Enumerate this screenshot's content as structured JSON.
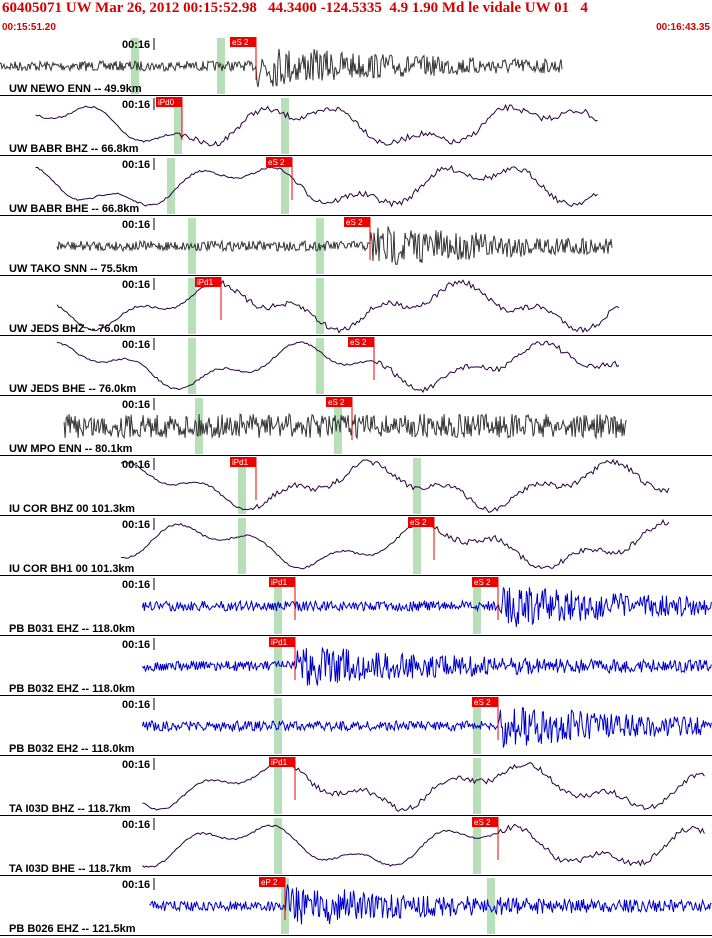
{
  "header": {
    "title": "60405071 UW Mar 26, 2012 00:15:52.98   44.3400 -124.5335  4.9 1.90 Md le vidale UW 01   4",
    "time_start": "00:15:51.20",
    "time_end": "00:16:43.35"
  },
  "colors": {
    "title": "#d40000",
    "pick": "#ee0000",
    "window": "#b8e0b8",
    "trace_dark": "#333333",
    "trace_blue": "#0000cc",
    "trace_purple": "#2a0040"
  },
  "traces": [
    {
      "label": "UW NEWO ENN -- 49.9km",
      "time_tick": "00:16",
      "color": "dark",
      "style": "noise",
      "span": [
        0.0,
        0.79
      ],
      "windows": [
        0.19,
        0.31
      ],
      "picks": [
        {
          "text": "eS 2",
          "at": 0.36
        }
      ]
    },
    {
      "label": "UW BABR BHZ -- 66.8km",
      "time_tick": "00:16",
      "color": "purple",
      "style": "wave",
      "span": [
        0.05,
        0.84
      ],
      "windows": [
        0.25,
        0.4
      ],
      "picks": [
        {
          "text": "iPd0",
          "at": 0.255
        }
      ]
    },
    {
      "label": "UW BABR BHE -- 66.8km",
      "time_tick": "00:16",
      "color": "purple",
      "style": "wave",
      "span": [
        0.05,
        0.84
      ],
      "windows": [
        0.24,
        0.4
      ],
      "picks": [
        {
          "text": "eS 2",
          "at": 0.41
        }
      ]
    },
    {
      "label": "UW TAKO SNN -- 75.5km",
      "time_tick": "00:16",
      "color": "dark",
      "style": "noise",
      "span": [
        0.08,
        0.86
      ],
      "windows": [
        0.27,
        0.45
      ],
      "picks": [
        {
          "text": "eS 2",
          "at": 0.52
        }
      ]
    },
    {
      "label": "UW JEDS BHZ -- 76.0km",
      "time_tick": "00:16",
      "color": "purple",
      "style": "wave",
      "span": [
        0.08,
        0.87
      ],
      "windows": [
        0.27,
        0.45
      ],
      "picks": [
        {
          "text": "iPd1",
          "at": 0.31
        }
      ]
    },
    {
      "label": "UW JEDS BHE -- 76.0km",
      "time_tick": "00:16",
      "color": "purple",
      "style": "wave",
      "span": [
        0.08,
        0.87
      ],
      "windows": [
        0.27,
        0.45
      ],
      "picks": [
        {
          "text": "eS 2",
          "at": 0.525
        }
      ]
    },
    {
      "label": "UW MPO ENN -- 80.1km",
      "time_tick": "00:16",
      "color": "dark",
      "style": "noise",
      "span": [
        0.09,
        0.88
      ],
      "windows": [
        0.28,
        0.475
      ],
      "picks": [
        {
          "text": "eS 2",
          "at": 0.495
        }
      ]
    },
    {
      "label": "IU COR BHZ 00 101.3km",
      "time_tick": "00:16",
      "color": "purple",
      "style": "wave",
      "span": [
        0.17,
        0.94
      ],
      "windows": [
        0.34,
        0.585
      ],
      "picks": [
        {
          "text": "iPd1",
          "at": 0.36
        }
      ]
    },
    {
      "label": "IU COR BH1 00 101.3km",
      "time_tick": "00:16",
      "color": "purple",
      "style": "wave",
      "span": [
        0.17,
        0.94
      ],
      "windows": [
        0.34,
        0.585
      ],
      "picks": [
        {
          "text": "eS 2",
          "at": 0.61
        }
      ]
    },
    {
      "label": "PB B031 EHZ -- 118.0km",
      "time_tick": "00:16",
      "color": "blue",
      "style": "noise",
      "span": [
        0.2,
        1.0
      ],
      "windows": [
        0.39,
        0.67
      ],
      "picks": [
        {
          "text": "iPd1",
          "at": 0.415
        },
        {
          "text": "eS 2",
          "at": 0.7
        }
      ]
    },
    {
      "label": "PB B032 EHZ -- 118.0km",
      "time_tick": "00:16",
      "color": "blue",
      "style": "noise",
      "span": [
        0.2,
        1.0
      ],
      "windows": [
        0.39
      ],
      "picks": [
        {
          "text": "iPd1",
          "at": 0.415
        }
      ]
    },
    {
      "label": "PB B032 EH2 -- 118.0km",
      "time_tick": "00:16",
      "color": "blue",
      "style": "noise",
      "span": [
        0.2,
        1.0
      ],
      "windows": [
        0.39,
        0.67
      ],
      "picks": [
        {
          "text": "eS 2",
          "at": 0.7
        }
      ]
    },
    {
      "label": "TA I03D BHZ -- 118.7km",
      "time_tick": "00:16",
      "color": "purple",
      "style": "wave",
      "span": [
        0.2,
        0.99
      ],
      "windows": [
        0.39,
        0.67
      ],
      "picks": [
        {
          "text": "iPd1",
          "at": 0.415
        }
      ]
    },
    {
      "label": "TA I03D BHE -- 118.7km",
      "time_tick": "00:16",
      "color": "purple",
      "style": "wave",
      "span": [
        0.2,
        0.99
      ],
      "windows": [
        0.39,
        0.67
      ],
      "picks": [
        {
          "text": "eS 2",
          "at": 0.7
        }
      ]
    },
    {
      "label": "PB B026 EHZ -- 121.5km",
      "time_tick": "00:16",
      "color": "blue",
      "style": "noise",
      "span": [
        0.21,
        1.0
      ],
      "windows": [
        0.4,
        0.69
      ],
      "picks": [
        {
          "text": "eP 2",
          "at": 0.4
        }
      ]
    }
  ]
}
